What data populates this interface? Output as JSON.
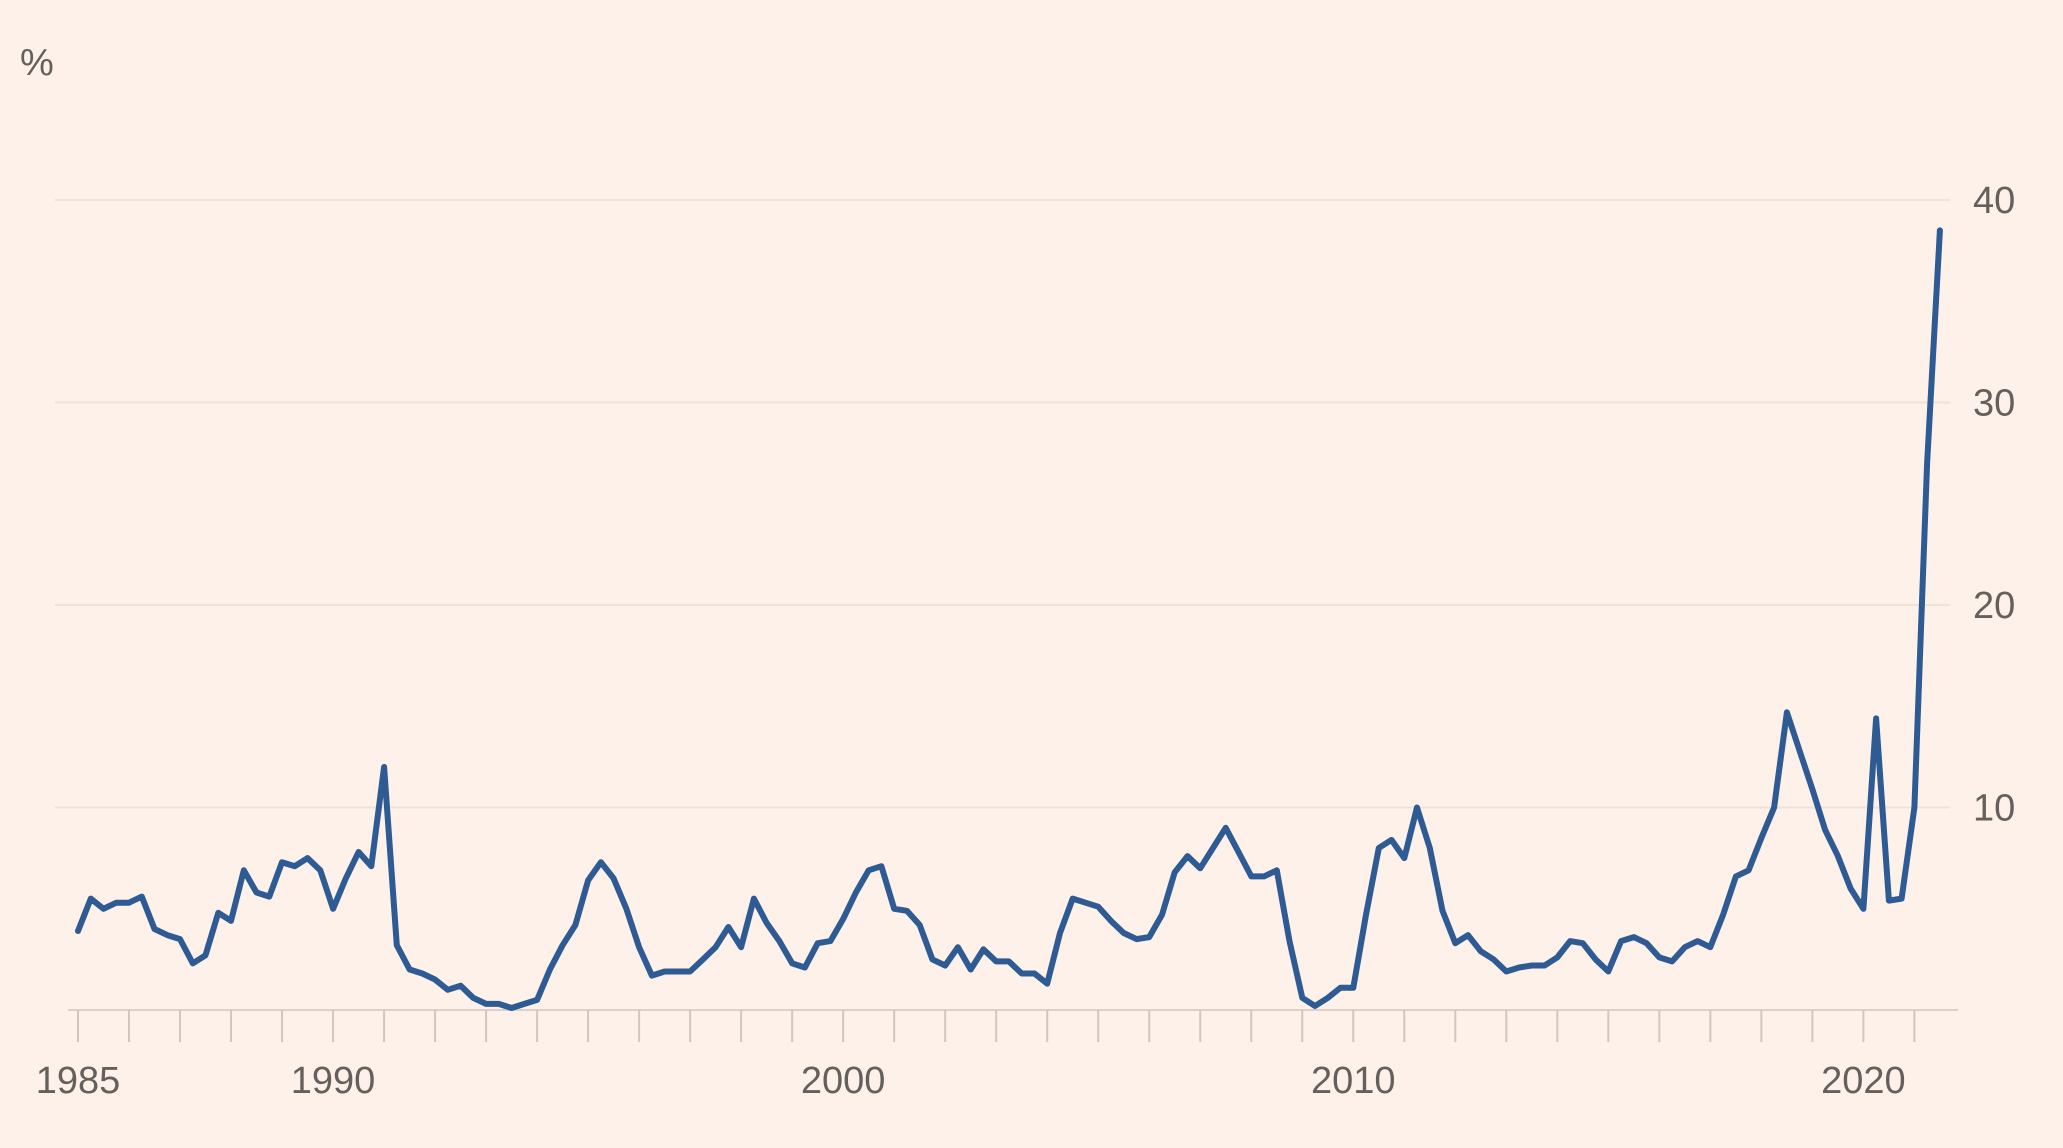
{
  "chart_data": {
    "type": "line",
    "title": "",
    "unit_label": "%",
    "xlabel": "",
    "ylabel": "",
    "xlim": [
      1985,
      2021.6
    ],
    "ylim": [
      0,
      40
    ],
    "y_ticks": [
      {
        "value": 10,
        "label": "10"
      },
      {
        "value": 20,
        "label": "20"
      },
      {
        "value": 30,
        "label": "30"
      },
      {
        "value": 40,
        "label": "40"
      }
    ],
    "x_ticks": [
      {
        "value": 1985,
        "label": "1985"
      },
      {
        "value": 1990,
        "label": "1990"
      },
      {
        "value": 2000,
        "label": "2000"
      },
      {
        "value": 2010,
        "label": "2010"
      },
      {
        "value": 2020,
        "label": "2020"
      }
    ],
    "y_axis_position": "right",
    "grid": true,
    "colors": {
      "line": "#2e5b94",
      "background": "#fdf1ea"
    },
    "series": [
      {
        "x": [
          1985.0,
          1985.25,
          1985.5,
          1985.75,
          1986.0,
          1986.25,
          1986.5,
          1986.75,
          1987.0,
          1987.25,
          1987.5,
          1987.75,
          1988.0,
          1988.25,
          1988.5,
          1988.75,
          1989.0,
          1989.25,
          1989.5,
          1989.75,
          1990.0,
          1990.25,
          1990.5,
          1990.75,
          1991.0,
          1991.25,
          1991.5,
          1991.75,
          1992.0,
          1992.25,
          1992.5,
          1992.75,
          1993.0,
          1993.25,
          1993.5,
          1993.75,
          1994.0,
          1994.25,
          1994.5,
          1994.75,
          1995.0,
          1995.25,
          1995.5,
          1995.75,
          1996.0,
          1996.25,
          1996.5,
          1996.75,
          1997.0,
          1997.25,
          1997.5,
          1997.75,
          1998.0,
          1998.25,
          1998.5,
          1998.75,
          1999.0,
          1999.25,
          1999.5,
          1999.75,
          2000.0,
          2000.25,
          2000.5,
          2000.75,
          2001.0,
          2001.25,
          2001.5,
          2001.75,
          2002.0,
          2002.25,
          2002.5,
          2002.75,
          2003.0,
          2003.25,
          2003.5,
          2003.75,
          2004.0,
          2004.25,
          2004.5,
          2004.75,
          2005.0,
          2005.25,
          2005.5,
          2005.75,
          2006.0,
          2006.25,
          2006.5,
          2006.75,
          2007.0,
          2007.25,
          2007.5,
          2007.75,
          2008.0,
          2008.25,
          2008.5,
          2008.75,
          2009.0,
          2009.25,
          2009.5,
          2009.75,
          2010.0,
          2010.25,
          2010.5,
          2010.75,
          2011.0,
          2011.25,
          2011.5,
          2011.75,
          2012.0,
          2012.25,
          2012.5,
          2012.75,
          2013.0,
          2013.25,
          2013.5,
          2013.75,
          2014.0,
          2014.25,
          2014.5,
          2014.75,
          2015.0,
          2015.25,
          2015.5,
          2015.75,
          2016.0,
          2016.25,
          2016.5,
          2016.75,
          2017.0,
          2017.25,
          2017.5,
          2017.75,
          2018.0,
          2018.25,
          2018.5,
          2018.75,
          2019.0,
          2019.25,
          2019.5,
          2019.75,
          2020.0,
          2020.25,
          2020.5,
          2020.75,
          2021.0,
          2021.25,
          2021.5
        ],
        "values": [
          3.9,
          5.5,
          5.0,
          5.3,
          5.3,
          5.6,
          4.0,
          3.7,
          3.5,
          2.3,
          2.7,
          4.8,
          4.4,
          6.9,
          5.8,
          5.6,
          7.3,
          7.1,
          7.5,
          6.9,
          5.0,
          6.5,
          7.8,
          7.1,
          12.0,
          3.2,
          2.0,
          1.8,
          1.5,
          1.0,
          1.2,
          0.6,
          0.3,
          0.3,
          0.1,
          0.3,
          0.5,
          2.0,
          3.2,
          4.2,
          6.4,
          7.3,
          6.5,
          5.0,
          3.1,
          1.7,
          1.9,
          1.9,
          1.9,
          2.5,
          3.1,
          4.1,
          3.1,
          5.5,
          4.3,
          3.4,
          2.3,
          2.1,
          3.3,
          3.4,
          4.5,
          5.8,
          6.9,
          7.1,
          5.0,
          4.9,
          4.2,
          2.5,
          2.2,
          3.1,
          2.0,
          3.0,
          2.4,
          2.4,
          1.8,
          1.8,
          1.3,
          3.8,
          5.5,
          5.3,
          5.1,
          4.4,
          3.8,
          3.5,
          3.6,
          4.7,
          6.8,
          7.6,
          7.0,
          8.0,
          9.0,
          7.8,
          6.6,
          6.6,
          6.9,
          3.4,
          0.6,
          0.2,
          0.6,
          1.1,
          1.1,
          4.7,
          8.0,
          8.4,
          7.5,
          10.0,
          8.0,
          4.9,
          3.3,
          3.7,
          2.9,
          2.5,
          1.9,
          2.1,
          2.2,
          2.2,
          2.6,
          3.4,
          3.3,
          2.5,
          1.9,
          3.4,
          3.6,
          3.3,
          2.6,
          2.4,
          3.1,
          3.4,
          3.1,
          4.7,
          6.6,
          6.9,
          8.5,
          10.0,
          14.7,
          12.8,
          10.9,
          8.9,
          7.6,
          6.0,
          5.0,
          14.4,
          5.4,
          5.5,
          10.0,
          27.0,
          38.5
        ]
      }
    ]
  }
}
